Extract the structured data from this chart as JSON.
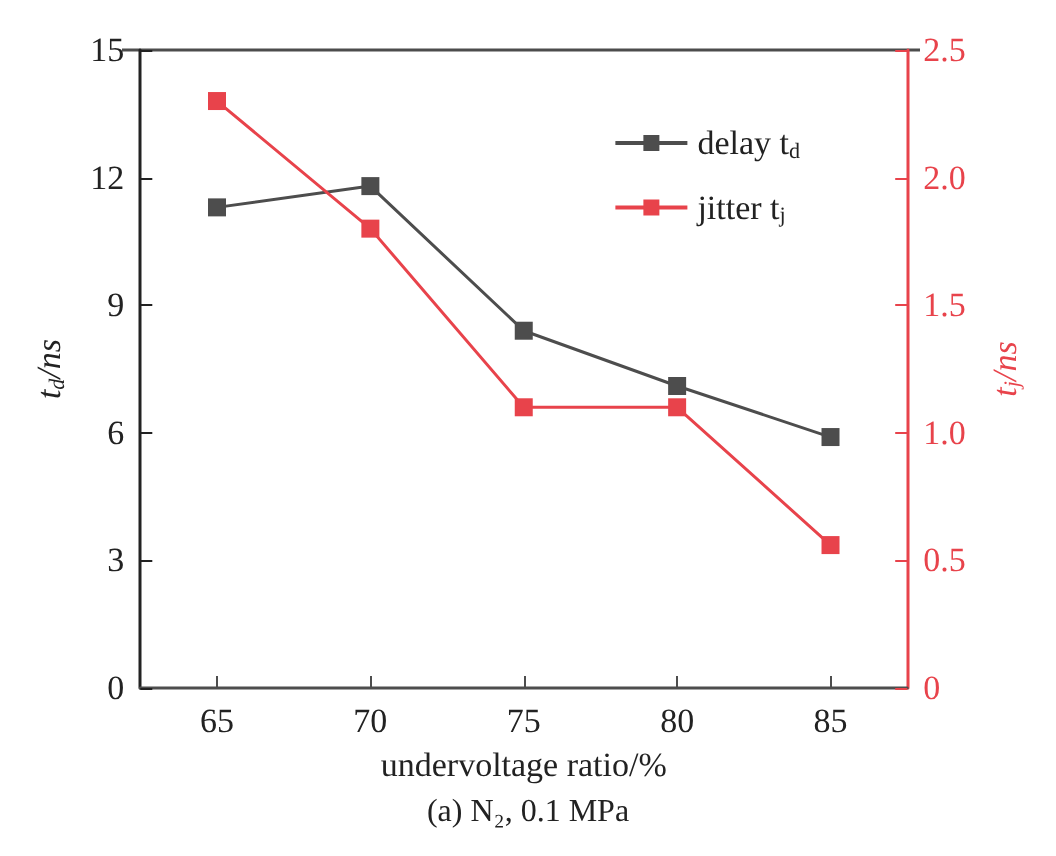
{
  "chart_data": {
    "type": "line",
    "xlabel": "undervoltage ratio/%",
    "ylabel": "t$_{d}$/ns",
    "y2label": "t$_{j}$/ns",
    "x": [
      65,
      70,
      75,
      80,
      85
    ],
    "xlim": [
      62.5,
      87.5
    ],
    "xticks": [
      65,
      70,
      75,
      80,
      85
    ],
    "ylim": [
      0,
      15
    ],
    "yticks": [
      0,
      3,
      6,
      9,
      12,
      15
    ],
    "y2lim": [
      0,
      2.5
    ],
    "y2ticks": [
      {
        "value": 0,
        "label": "0"
      },
      0.5,
      {
        "value": 1,
        "label": "1.0"
      },
      1.5,
      {
        "value": 2,
        "label": "2.0"
      },
      2.5
    ],
    "series": [
      {
        "name": "delay t$_{d}$",
        "color": "#4d4d4d",
        "values": [
          11.3,
          11.8,
          8.4,
          7.1,
          5.9
        ]
      },
      {
        "name": "jitter t$_{j}$",
        "color": "#e8434b",
        "values": [
          2.3,
          1.8,
          1.1,
          1.1,
          0.56
        ],
        "axis": "y2"
      }
    ],
    "marker": "square",
    "line_style": "solid",
    "grid": false,
    "legend": "top right",
    "annotations": [
      "(a) N₂, 0.1 MPa"
    ]
  }
}
